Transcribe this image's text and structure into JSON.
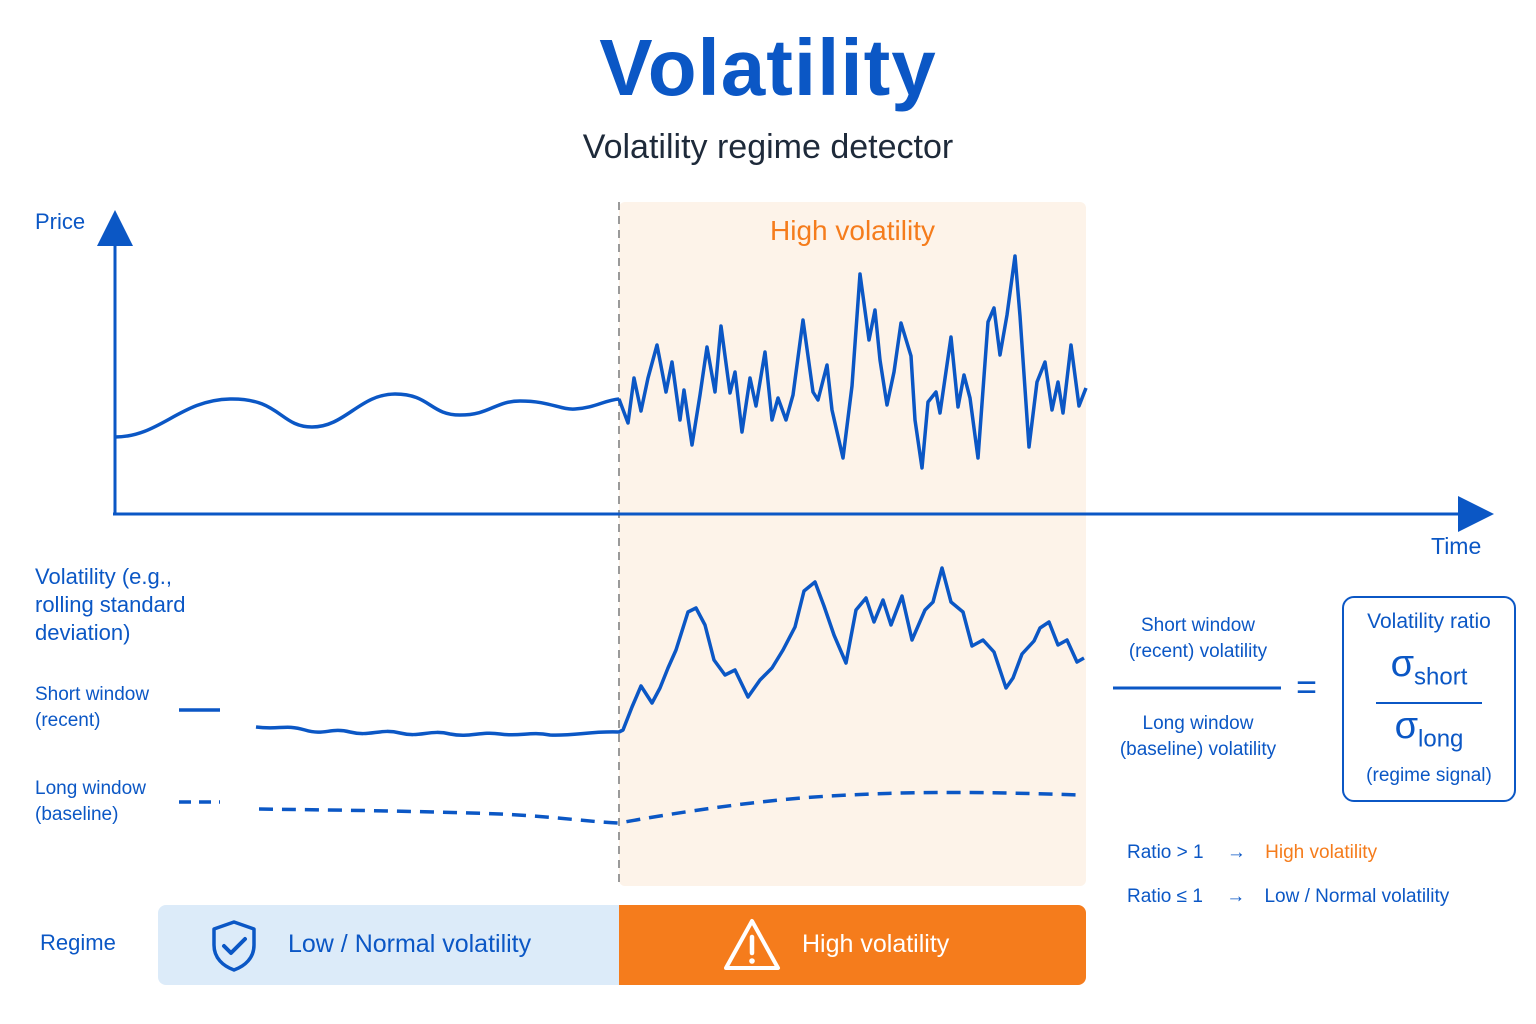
{
  "header": {
    "title": "Volatility",
    "subtitle": "Volatility regime detector"
  },
  "colors": {
    "primary_blue": "#0b57c5",
    "high_vol_orange": "#f57c1c",
    "high_vol_shade": "#fdf3e9",
    "low_vol_band": "#dcebf9"
  },
  "price_chart": {
    "y_axis_label": "Price",
    "x_axis_label": "Time",
    "region_label": "High volatility"
  },
  "volatility_chart": {
    "y_axis_label_lines": [
      "Volatility (e.g.,",
      "rolling standard",
      "deviation)"
    ],
    "legend": {
      "short": [
        "Short window",
        "(recent)"
      ],
      "long": [
        "Long window",
        "(baseline)"
      ]
    }
  },
  "formula": {
    "numerator": [
      "Short window",
      "(recent) volatility"
    ],
    "denominator": [
      "Long window",
      "(baseline) volatility"
    ],
    "equals": "=",
    "box_title": "Volatility ratio",
    "sigma": "σ",
    "sub_short": "short",
    "sub_long": "long",
    "box_note": "(regime signal)"
  },
  "rules": [
    {
      "condition": "Ratio > 1",
      "arrow": "→",
      "result": "High volatility",
      "color": "#f57c1c"
    },
    {
      "condition": "Ratio ≤ 1",
      "arrow": "→",
      "result": "Low / Normal volatility",
      "color": "#0b57c5"
    }
  ],
  "regime": {
    "label": "Regime",
    "low": {
      "text": "Low / Normal volatility",
      "icon": "shield-check-icon"
    },
    "high": {
      "text": "High volatility",
      "icon": "warning-triangle-icon"
    }
  }
}
